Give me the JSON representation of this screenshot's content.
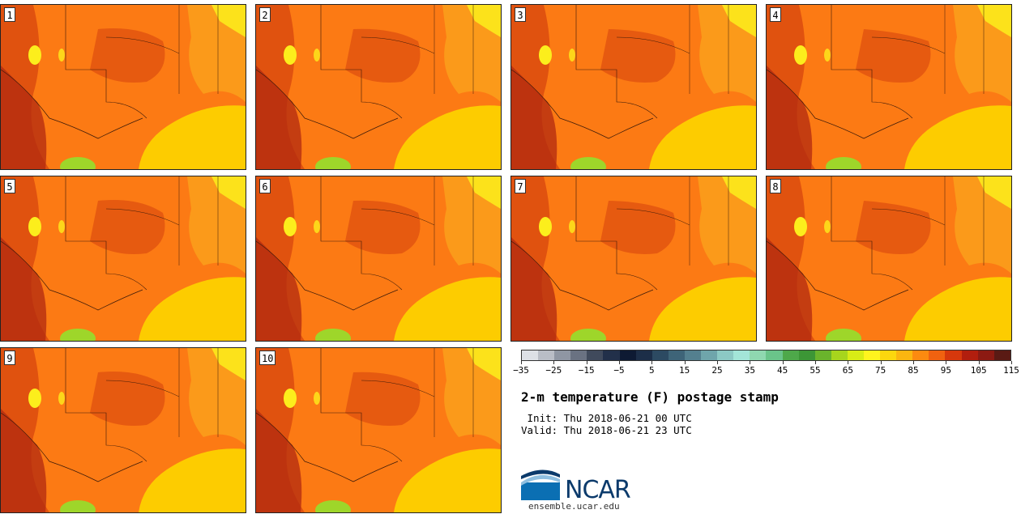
{
  "panels": [
    {
      "label": "1"
    },
    {
      "label": "2"
    },
    {
      "label": "3"
    },
    {
      "label": "4"
    },
    {
      "label": "5"
    },
    {
      "label": "6"
    },
    {
      "label": "7"
    },
    {
      "label": "8"
    },
    {
      "label": "9"
    },
    {
      "label": "10"
    }
  ],
  "colors": {
    "map_base": "#fc7a14",
    "map_hot": "#e0520f",
    "map_hottest": "#b22a10",
    "map_warm": "#fb9a1a",
    "gulf": "#fdcc00",
    "yellow": "#fcee1c",
    "green": "#9ed62a"
  },
  "colorbar": {
    "colors": [
      "#dde0e6",
      "#b9bdc6",
      "#8f96a3",
      "#6a7282",
      "#404a5c",
      "#22304a",
      "#0e1a33",
      "#1c2e48",
      "#2c4a62",
      "#3e6478",
      "#54808f",
      "#6fa5ab",
      "#8cc9c4",
      "#a3e5d8",
      "#8fd8b0",
      "#6ac48a",
      "#4ea84a",
      "#3c9636",
      "#6ab42c",
      "#a7d51d",
      "#d8ec16",
      "#fff41e",
      "#fcd70e",
      "#fbb610",
      "#fc8a10",
      "#f06210",
      "#d6380c",
      "#b21e0e",
      "#8c1a12",
      "#5a1a14"
    ],
    "ticks": [
      "−35",
      "−25",
      "−15",
      "−5",
      "5",
      "15",
      "25",
      "35",
      "45",
      "55",
      "65",
      "75",
      "85",
      "95",
      "105",
      "115"
    ]
  },
  "title": "2-m temperature (F) postage stamp",
  "init": " Init: Thu 2018-06-21 00 UTC",
  "valid": "Valid: Thu 2018-06-21 23 UTC",
  "logo": {
    "name": "NCAR",
    "site": "ensemble.ucar.edu"
  }
}
